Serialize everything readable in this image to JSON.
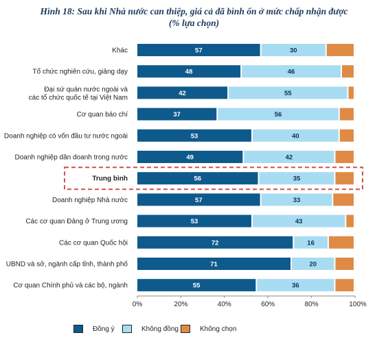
{
  "chart_data": {
    "type": "bar",
    "stacked": true,
    "orientation": "horizontal",
    "title": "Hình 18: Sau khi Nhà nước can thiệp, giá cả đã bình ổn ở mức chấp nhận được",
    "subtitle": "(% lựa chọn)",
    "categories": [
      "Khác",
      "Tổ chức nghiên cứu, giảng dạy",
      "Đại sứ quán nước ngoài  và|các tổ chức quốc tế tại Việt Nam",
      "Cơ quan báo chí",
      "Doanh nghiệp có vốn đầu tư nước ngoài",
      "Doanh nghiệp dân doanh trong nước",
      "Trung bình",
      "Doanh nghiệp Nhà nước",
      "Các cơ quan Đảng ở Trung ương",
      "Các cơ quan Quốc hội",
      "UBND và sở, ngành cấp tỉnh, thành phố",
      "Cơ quan Chính phủ và các bộ, ngành"
    ],
    "highlighted_category": "Trung bình",
    "series": [
      {
        "name": "Đồng ý",
        "color": "#0f5a8c",
        "values": [
          57,
          48,
          42,
          37,
          53,
          49,
          56,
          57,
          53,
          72,
          71,
          55
        ],
        "labels": [
          "57",
          "48",
          "42",
          "37",
          "53",
          "49",
          "56",
          "57",
          "53",
          "72",
          "71",
          "55"
        ]
      },
      {
        "name": "Không đồng ý",
        "color": "#a8dcf2",
        "values": [
          30,
          46,
          55,
          56,
          40,
          42,
          35,
          33,
          43,
          16,
          20,
          36
        ],
        "labels": [
          "30",
          "46",
          "55",
          "56",
          "40",
          "42",
          "35",
          "33",
          "43",
          "16",
          "20",
          "36"
        ]
      },
      {
        "name": "Không chọn",
        "color": "#df8b45",
        "values": [
          13,
          6,
          3,
          7,
          7,
          9,
          9,
          10,
          4,
          12,
          9,
          9
        ],
        "labels": [
          "",
          "",
          "",
          "",
          "",
          "",
          "",
          "",
          "",
          "",
          "",
          ""
        ]
      }
    ],
    "xticks": [
      "0%",
      "20%",
      "40%",
      "60%",
      "80%",
      "100%"
    ],
    "xlim": [
      0,
      100
    ],
    "grid": false,
    "legend_position": "bottom"
  }
}
